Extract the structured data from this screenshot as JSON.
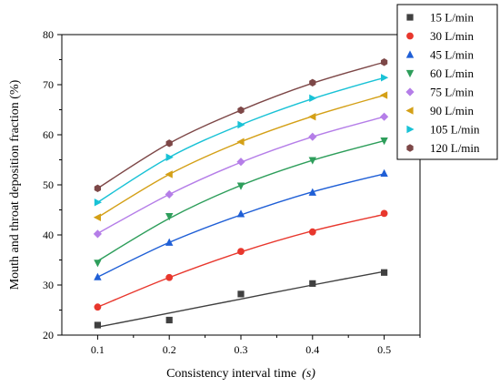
{
  "chart_data": {
    "type": "scatter",
    "title": "",
    "xlabel": "Consistency interval time",
    "xunit": "(s)",
    "ylabel": "Mouth and throat deposition fraction (%)",
    "xlim": [
      0.05,
      0.55
    ],
    "ylim": [
      20,
      80
    ],
    "xticks": [
      "0.1",
      "0.2",
      "0.3",
      "0.4",
      "0.5"
    ],
    "yticks": [
      "20",
      "30",
      "40",
      "50",
      "60",
      "70",
      "80"
    ],
    "x": [
      0.1,
      0.2,
      0.3,
      0.4,
      0.5
    ],
    "legend_position": "top-right, outside plot",
    "series": [
      {
        "name": "15 L/min",
        "marker": "square",
        "color": "#404040",
        "values": [
          22.0,
          23.0,
          28.2,
          30.3,
          32.5
        ],
        "fit": [
          21.6,
          24.4,
          27.2,
          30.0,
          32.7
        ]
      },
      {
        "name": "30 L/min",
        "marker": "circle",
        "color": "#e8372d",
        "values": [
          25.6,
          31.5,
          36.7,
          40.6,
          44.3
        ],
        "fit": [
          25.6,
          31.5,
          36.6,
          40.8,
          44.1
        ]
      },
      {
        "name": "45 L/min",
        "marker": "triangle-up",
        "color": "#1f5fd6",
        "values": [
          31.6,
          38.5,
          44.2,
          48.5,
          52.3
        ],
        "fit": [
          31.6,
          38.5,
          44.0,
          48.6,
          52.2
        ]
      },
      {
        "name": "60 L/min",
        "marker": "triangle-down",
        "color": "#2e9e5b",
        "values": [
          34.4,
          43.7,
          49.8,
          54.9,
          58.8
        ],
        "fit": [
          34.8,
          43.3,
          49.9,
          54.9,
          58.8
        ]
      },
      {
        "name": "75 L/min",
        "marker": "diamond",
        "color": "#b57ee8",
        "values": [
          40.2,
          48.1,
          54.6,
          59.6,
          63.6
        ],
        "fit": [
          40.3,
          48.1,
          54.5,
          59.6,
          63.6
        ]
      },
      {
        "name": "90 L/min",
        "marker": "triangle-left",
        "color": "#d4a017",
        "values": [
          43.5,
          52.1,
          58.6,
          63.6,
          67.9
        ],
        "fit": [
          43.5,
          52.1,
          58.6,
          63.7,
          67.9
        ]
      },
      {
        "name": "105 L/min",
        "marker": "triangle-right",
        "color": "#19c2d6",
        "values": [
          46.5,
          55.5,
          62.0,
          67.3,
          71.4
        ],
        "fit": [
          46.5,
          55.5,
          62.0,
          67.2,
          71.4
        ]
      },
      {
        "name": "120 L/min",
        "marker": "hexagon",
        "color": "#7d4747",
        "values": [
          49.3,
          58.3,
          64.9,
          70.4,
          74.5
        ],
        "fit": [
          49.3,
          58.3,
          64.9,
          70.3,
          74.5
        ]
      }
    ]
  }
}
